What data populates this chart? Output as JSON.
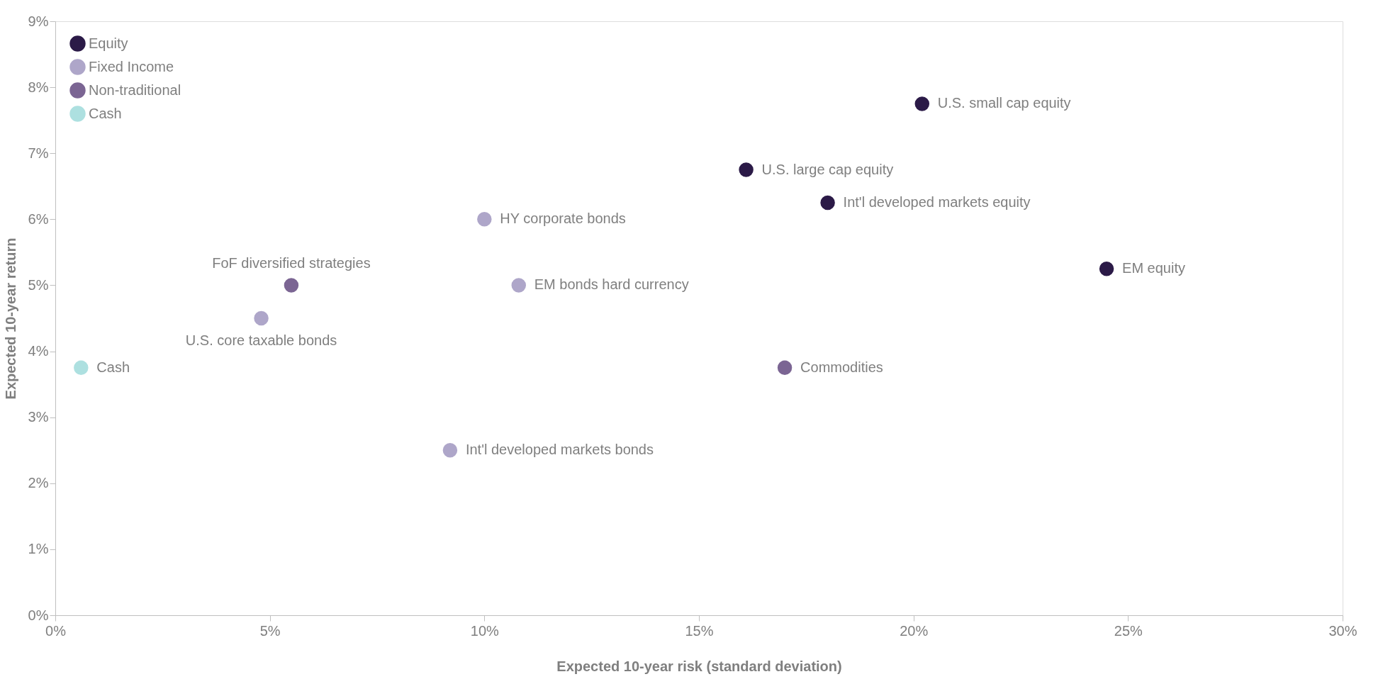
{
  "chart_data": {
    "type": "scatter",
    "xlabel": "Expected 10-year risk (standard deviation)",
    "ylabel": "Expected 10-year return",
    "xlim": [
      0,
      30
    ],
    "ylim": [
      0,
      9
    ],
    "xticks": [
      {
        "value": 0,
        "label": "0%"
      },
      {
        "value": 5,
        "label": "5%"
      },
      {
        "value": 10,
        "label": "10%"
      },
      {
        "value": 15,
        "label": "15%"
      },
      {
        "value": 20,
        "label": "20%"
      },
      {
        "value": 25,
        "label": "25%"
      },
      {
        "value": 30,
        "label": "30%"
      }
    ],
    "yticks": [
      {
        "value": 0,
        "label": "0%"
      },
      {
        "value": 1,
        "label": "1%"
      },
      {
        "value": 2,
        "label": "2%"
      },
      {
        "value": 3,
        "label": "3%"
      },
      {
        "value": 4,
        "label": "4%"
      },
      {
        "value": 5,
        "label": "5%"
      },
      {
        "value": 6,
        "label": "6%"
      },
      {
        "value": 7,
        "label": "7%"
      },
      {
        "value": 8,
        "label": "8%"
      },
      {
        "value": 9,
        "label": "9%"
      }
    ],
    "grid": false,
    "legend": "top left",
    "marker": "circle",
    "series": [
      {
        "name": "Equity",
        "color": "#2b1a47",
        "x": [
          20.2,
          16.1,
          18.0,
          24.5
        ],
        "values": [
          7.75,
          6.75,
          6.25,
          5.25
        ]
      },
      {
        "name": "Fixed Income",
        "color": "#aea6c9",
        "x": [
          10.0,
          10.8,
          4.8,
          9.2
        ],
        "values": [
          6.0,
          5.0,
          4.5,
          2.5
        ]
      },
      {
        "name": "Non-traditional",
        "color": "#7b6593",
        "x": [
          5.5,
          17.0
        ],
        "values": [
          5.0,
          3.75
        ]
      },
      {
        "name": "Cash",
        "color": "#ade0e0",
        "x": [
          0.6
        ],
        "values": [
          3.75
        ]
      }
    ],
    "annotations": [
      {
        "text": "U.S. small cap equity",
        "x": 20.2,
        "y": 7.75
      },
      {
        "text": "U.S. large cap equity",
        "x": 16.1,
        "y": 6.75
      },
      {
        "text": "Int'l developed markets equity",
        "x": 18.0,
        "y": 6.25
      },
      {
        "text": "EM equity",
        "x": 24.5,
        "y": 5.25
      },
      {
        "text": "HY corporate bonds",
        "x": 10.0,
        "y": 6.0
      },
      {
        "text": "EM bonds hard currency",
        "x": 10.8,
        "y": 5.0
      },
      {
        "text": "U.S. core taxable bonds",
        "x": 4.8,
        "y": 4.5
      },
      {
        "text": "Int'l developed markets bonds",
        "x": 9.2,
        "y": 2.5
      },
      {
        "text": "FoF diversified strategies",
        "x": 5.5,
        "y": 5.0
      },
      {
        "text": "Commodities",
        "x": 17.0,
        "y": 3.75
      },
      {
        "text": "Cash",
        "x": 0.6,
        "y": 3.75
      }
    ]
  }
}
